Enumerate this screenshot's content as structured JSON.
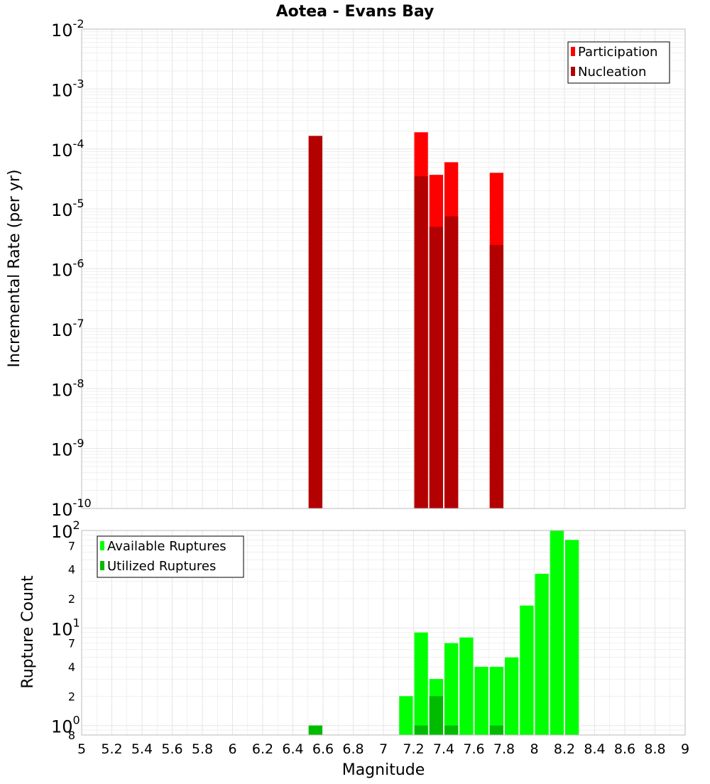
{
  "title": "Aotea - Evans Bay",
  "xlabel": "Magnitude",
  "colors": {
    "participation": "#ff0000",
    "nucleation": "#b30000",
    "available": "#00ff00",
    "utilized": "#00bb00",
    "grid": "#e6e6e6",
    "frame": "#bbbbbb"
  },
  "chart_data": [
    {
      "type": "bar",
      "name": "rates",
      "yscale": "log",
      "ylabel": "Incremental Rate (per yr)",
      "xlim": [
        5,
        9
      ],
      "ylim": [
        1e-10,
        0.01
      ],
      "bin_width": 0.1,
      "legend": {
        "position": "top-right",
        "entries": [
          "Participation",
          "Nucleation"
        ]
      },
      "y_ticks": [
        {
          "base": "10",
          "exp": "-2",
          "value": 0.01
        },
        {
          "base": "10",
          "exp": "-3",
          "value": 0.001
        },
        {
          "base": "10",
          "exp": "-4",
          "value": 0.0001
        },
        {
          "base": "10",
          "exp": "-5",
          "value": 1e-05
        },
        {
          "base": "10",
          "exp": "-6",
          "value": 1e-06
        },
        {
          "base": "10",
          "exp": "-7",
          "value": 1e-07
        },
        {
          "base": "10",
          "exp": "-8",
          "value": 1e-08
        },
        {
          "base": "10",
          "exp": "-9",
          "value": 1e-09
        },
        {
          "base": "10",
          "exp": "-10",
          "value": 1e-10
        }
      ],
      "series": [
        {
          "name": "Participation",
          "color_key": "participation",
          "points": [
            {
              "x": 6.55,
              "y": 0.000165
            },
            {
              "x": 7.25,
              "y": 0.00019
            },
            {
              "x": 7.35,
              "y": 3.7e-05
            },
            {
              "x": 7.45,
              "y": 6e-05
            },
            {
              "x": 7.75,
              "y": 4e-05
            }
          ]
        },
        {
          "name": "Nucleation",
          "color_key": "nucleation",
          "points": [
            {
              "x": 6.55,
              "y": 0.000165
            },
            {
              "x": 7.25,
              "y": 3.5e-05
            },
            {
              "x": 7.35,
              "y": 5e-06
            },
            {
              "x": 7.45,
              "y": 7.5e-06
            },
            {
              "x": 7.75,
              "y": 2.5e-06
            }
          ]
        }
      ]
    },
    {
      "type": "bar",
      "name": "counts",
      "yscale": "log",
      "ylabel": "Rupture Count",
      "xlim": [
        5,
        9
      ],
      "ylim": [
        0.8,
        100
      ],
      "bin_width": 0.1,
      "legend": {
        "position": "top-left",
        "entries": [
          "Available Ruptures",
          "Utilized Ruptures"
        ]
      },
      "x_ticks": [
        "5",
        "5.2",
        "5.4",
        "5.6",
        "5.8",
        "6",
        "6.2",
        "6.4",
        "6.6",
        "6.8",
        "7",
        "7.2",
        "7.4",
        "7.6",
        "7.8",
        "8",
        "8.2",
        "8.4",
        "8.6",
        "8.8",
        "9"
      ],
      "y_major_ticks": [
        {
          "base": "10",
          "exp": "2",
          "value": 100
        },
        {
          "base": "10",
          "exp": "1",
          "value": 10
        },
        {
          "base": "10",
          "exp": "0",
          "value": 1
        }
      ],
      "y_minor_ticks": [
        {
          "label": "7",
          "value": 70
        },
        {
          "label": "4",
          "value": 40
        },
        {
          "label": "2",
          "value": 20
        },
        {
          "label": "7",
          "value": 7
        },
        {
          "label": "4",
          "value": 4
        },
        {
          "label": "2",
          "value": 2
        },
        {
          "label": "8",
          "value": 0.8
        }
      ],
      "series": [
        {
          "name": "Available Ruptures",
          "color_key": "available",
          "points": [
            {
              "x": 6.55,
              "y": 1
            },
            {
              "x": 7.15,
              "y": 2
            },
            {
              "x": 7.25,
              "y": 9
            },
            {
              "x": 7.35,
              "y": 3
            },
            {
              "x": 7.45,
              "y": 7
            },
            {
              "x": 7.55,
              "y": 8
            },
            {
              "x": 7.65,
              "y": 4
            },
            {
              "x": 7.75,
              "y": 4
            },
            {
              "x": 7.85,
              "y": 5
            },
            {
              "x": 7.95,
              "y": 17
            },
            {
              "x": 8.05,
              "y": 36
            },
            {
              "x": 8.15,
              "y": 100
            },
            {
              "x": 8.25,
              "y": 80
            }
          ]
        },
        {
          "name": "Utilized Ruptures",
          "color_key": "utilized",
          "points": [
            {
              "x": 6.55,
              "y": 1
            },
            {
              "x": 7.25,
              "y": 1
            },
            {
              "x": 7.35,
              "y": 2
            },
            {
              "x": 7.45,
              "y": 1
            },
            {
              "x": 7.75,
              "y": 1
            }
          ]
        }
      ]
    }
  ]
}
